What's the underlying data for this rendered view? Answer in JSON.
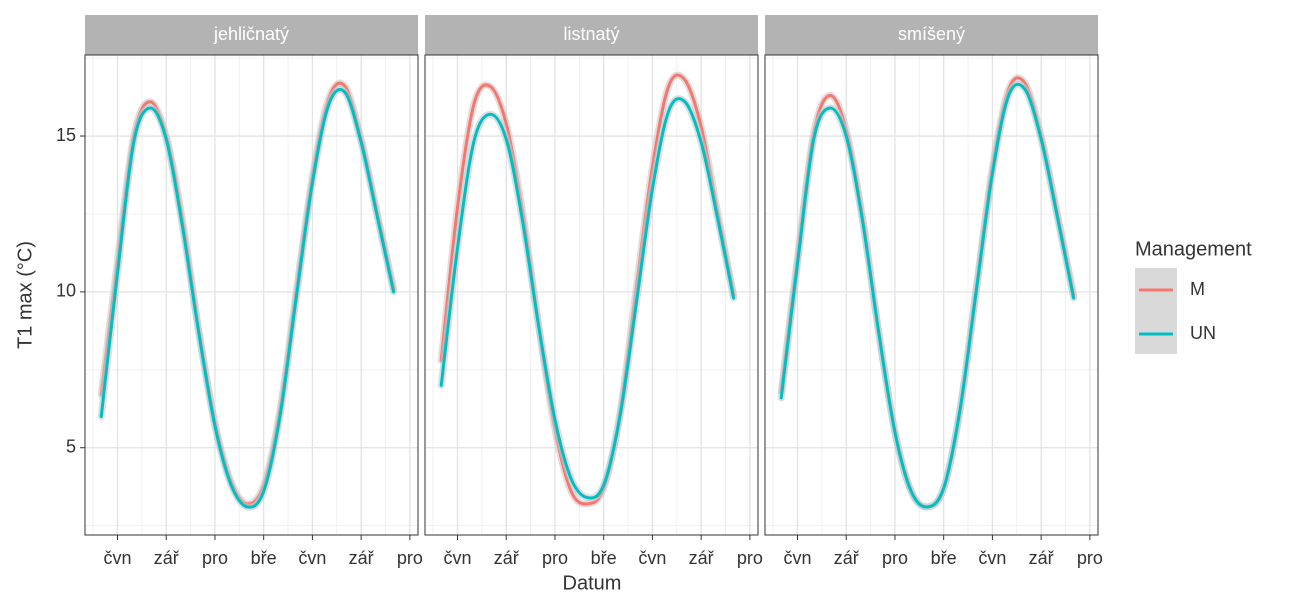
{
  "chart_data": [
    {
      "type": "line",
      "title": "jehličnatý",
      "x": [
        -1,
        0,
        1,
        2,
        3,
        4,
        5,
        6,
        7,
        8,
        9,
        10,
        11,
        12,
        13,
        14,
        15,
        16,
        17
      ],
      "xlim": [
        -2,
        18.5
      ],
      "xticks": [
        {
          "value": 0,
          "label": "čvn"
        },
        {
          "value": 3,
          "label": "zář"
        },
        {
          "value": 6,
          "label": "pro"
        },
        {
          "value": 9,
          "label": "bře"
        },
        {
          "value": 12,
          "label": "čvn"
        },
        {
          "value": 15,
          "label": "zář"
        },
        {
          "value": 18,
          "label": "pro"
        }
      ],
      "ylim": [
        2.2,
        17.6
      ],
      "yticks": [
        5,
        10,
        15
      ],
      "grid": true,
      "series": [
        {
          "name": "M",
          "color": "#f8766d",
          "values": [
            6.7,
            11.0,
            15.0,
            16.1,
            15.0,
            12.3,
            8.8,
            5.8,
            3.9,
            3.2,
            3.8,
            6.2,
            10.0,
            13.7,
            16.2,
            16.6,
            14.9,
            12.5,
            10.1
          ]
        },
        {
          "name": "UN",
          "color": "#00bfc4",
          "values": [
            6.0,
            10.6,
            14.8,
            15.9,
            14.9,
            12.1,
            8.7,
            5.7,
            3.8,
            3.1,
            3.6,
            6.0,
            9.8,
            13.5,
            16.0,
            16.4,
            14.8,
            12.4,
            10.0
          ]
        }
      ]
    },
    {
      "type": "line",
      "title": "listnatý",
      "x": [
        -1,
        0,
        1,
        2,
        3,
        4,
        5,
        6,
        7,
        8,
        9,
        10,
        11,
        12,
        13,
        14,
        15,
        16,
        17
      ],
      "xlim": [
        -2,
        18.5
      ],
      "xticks": [
        {
          "value": 0,
          "label": "čvn"
        },
        {
          "value": 3,
          "label": "zář"
        },
        {
          "value": 6,
          "label": "pro"
        },
        {
          "value": 9,
          "label": "bře"
        },
        {
          "value": 12,
          "label": "čvn"
        },
        {
          "value": 15,
          "label": "zář"
        },
        {
          "value": 18,
          "label": "pro"
        }
      ],
      "ylim": [
        2.2,
        17.6
      ],
      "yticks": [
        5,
        10,
        15
      ],
      "grid": true,
      "series": [
        {
          "name": "M",
          "color": "#f8766d",
          "values": [
            7.8,
            12.7,
            16.0,
            16.6,
            15.4,
            12.6,
            8.9,
            5.6,
            3.6,
            3.2,
            3.7,
            6.1,
            10.1,
            14.0,
            16.6,
            16.8,
            15.3,
            12.6,
            9.9
          ]
        },
        {
          "name": "UN",
          "color": "#00bfc4",
          "values": [
            7.0,
            11.4,
            14.8,
            15.7,
            14.9,
            12.3,
            8.9,
            5.9,
            4.0,
            3.4,
            3.8,
            6.0,
            9.6,
            13.3,
            15.8,
            16.1,
            14.8,
            12.4,
            9.8
          ]
        }
      ]
    },
    {
      "type": "line",
      "title": "smíšený",
      "x": [
        -1,
        0,
        1,
        2,
        3,
        4,
        5,
        6,
        7,
        8,
        9,
        10,
        11,
        12,
        13,
        14,
        15,
        16,
        17
      ],
      "xlim": [
        -2,
        18.5
      ],
      "xticks": [
        {
          "value": 0,
          "label": "čvn"
        },
        {
          "value": 3,
          "label": "zář"
        },
        {
          "value": 6,
          "label": "pro"
        },
        {
          "value": 9,
          "label": "bře"
        },
        {
          "value": 12,
          "label": "čvn"
        },
        {
          "value": 15,
          "label": "zář"
        },
        {
          "value": 18,
          "label": "pro"
        }
      ],
      "ylim": [
        2.2,
        17.6
      ],
      "yticks": [
        5,
        10,
        15
      ],
      "grid": true,
      "series": [
        {
          "name": "M",
          "color": "#f8766d",
          "values": [
            6.8,
            11.1,
            15.1,
            16.3,
            15.2,
            12.4,
            8.7,
            5.5,
            3.6,
            3.1,
            3.7,
            6.2,
            10.1,
            14.0,
            16.5,
            16.7,
            15.0,
            12.5,
            9.9
          ]
        },
        {
          "name": "UN",
          "color": "#00bfc4",
          "values": [
            6.6,
            10.9,
            14.9,
            15.9,
            15.0,
            12.3,
            8.7,
            5.5,
            3.6,
            3.1,
            3.7,
            6.2,
            10.0,
            13.8,
            16.3,
            16.5,
            14.9,
            12.4,
            9.8
          ]
        }
      ]
    }
  ],
  "x_label": "Datum",
  "y_label": "T1 max (°C)",
  "legend_title": "Management"
}
